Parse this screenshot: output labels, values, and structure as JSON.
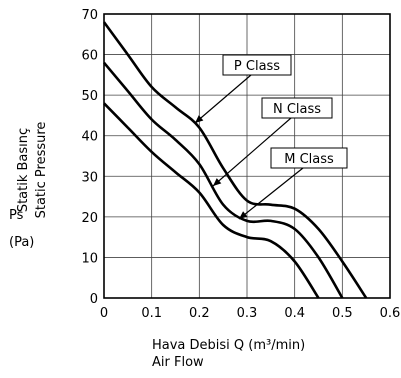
{
  "chart_data": {
    "type": "line",
    "xlabel": "Hava Debisi Q (m³/min)",
    "xlabel_en": "Air Flow",
    "ylabel": "Statik Basınç",
    "ylabel_en": "Static Pressure",
    "y_symbol": "Ps",
    "y_unit": "(Pa)",
    "xlim": [
      0,
      0.6
    ],
    "ylim": [
      0,
      70
    ],
    "xticks": [
      0,
      0.1,
      0.2,
      0.3,
      0.4,
      0.5,
      0.6
    ],
    "xtick_labels": [
      "0",
      "0.1",
      "0.2",
      "0.3",
      "0.4",
      "0.5",
      "0.6"
    ],
    "yticks": [
      0,
      10,
      20,
      30,
      40,
      50,
      60,
      70
    ],
    "ytick_labels": [
      "0",
      "10",
      "20",
      "30",
      "40",
      "50",
      "60",
      "70"
    ],
    "grid": true,
    "series": [
      {
        "name": "P Class",
        "x": [
          0,
          0.05,
          0.1,
          0.15,
          0.2,
          0.25,
          0.3,
          0.35,
          0.4,
          0.45,
          0.5,
          0.55
        ],
        "y": [
          68,
          60,
          52,
          47,
          42,
          32,
          24,
          23,
          22,
          17,
          9,
          0
        ]
      },
      {
        "name": "N Class",
        "x": [
          0,
          0.05,
          0.1,
          0.15,
          0.2,
          0.25,
          0.3,
          0.35,
          0.4,
          0.45,
          0.5
        ],
        "y": [
          58,
          51,
          44,
          39,
          33,
          23,
          19,
          19,
          17,
          10,
          0
        ]
      },
      {
        "name": "M Class",
        "x": [
          0,
          0.05,
          0.1,
          0.15,
          0.2,
          0.25,
          0.3,
          0.35,
          0.4,
          0.45
        ],
        "y": [
          48,
          42,
          36,
          31,
          26,
          18,
          15,
          14,
          9,
          0
        ]
      }
    ],
    "annotations": [
      {
        "text": "P Class",
        "series": 0
      },
      {
        "text": "N Class",
        "series": 1
      },
      {
        "text": "M Class",
        "series": 2
      }
    ]
  }
}
